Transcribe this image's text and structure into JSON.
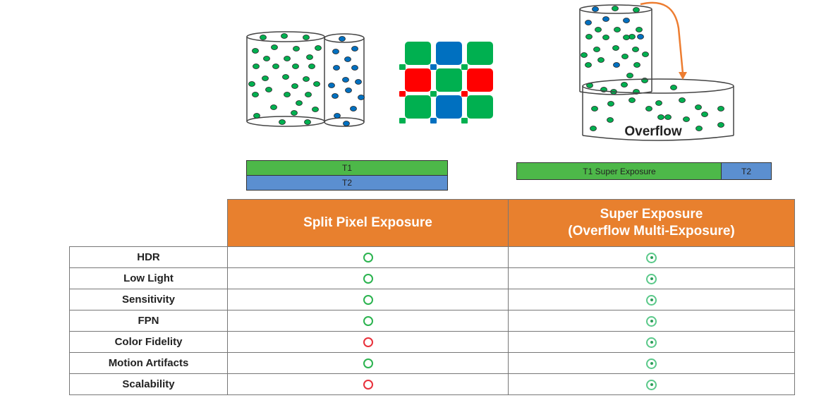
{
  "diagram": {
    "overflow_label": "Overflow",
    "colors": {
      "green": "#00b050",
      "blue": "#0070c0",
      "red": "#ff0000",
      "orange": "#e8802e"
    }
  },
  "timing": {
    "split": {
      "t1": "T1",
      "t2": "T2"
    },
    "super": {
      "t1": "T1  Super Exposure",
      "t2": "T2"
    }
  },
  "table": {
    "headers": [
      "",
      "Split Pixel Exposure",
      "Super Exposure\n(Overflow Multi-Exposure)"
    ],
    "header_line1": "Super Exposure",
    "header_line2": "(Overflow Multi-Exposure)",
    "legend": {
      "good": "green circle",
      "poor": "red circle",
      "excellent": "green double circle"
    },
    "rows": [
      {
        "label": "HDR",
        "split": "good",
        "super": "excellent"
      },
      {
        "label": "Low Light",
        "split": "good",
        "super": "excellent"
      },
      {
        "label": "Sensitivity",
        "split": "good",
        "super": "excellent"
      },
      {
        "label": "FPN",
        "split": "good",
        "super": "excellent"
      },
      {
        "label": "Color Fidelity",
        "split": "poor",
        "super": "excellent"
      },
      {
        "label": "Motion Artifacts",
        "split": "good",
        "super": "excellent"
      },
      {
        "label": "Scalability",
        "split": "poor",
        "super": "excellent"
      }
    ]
  }
}
